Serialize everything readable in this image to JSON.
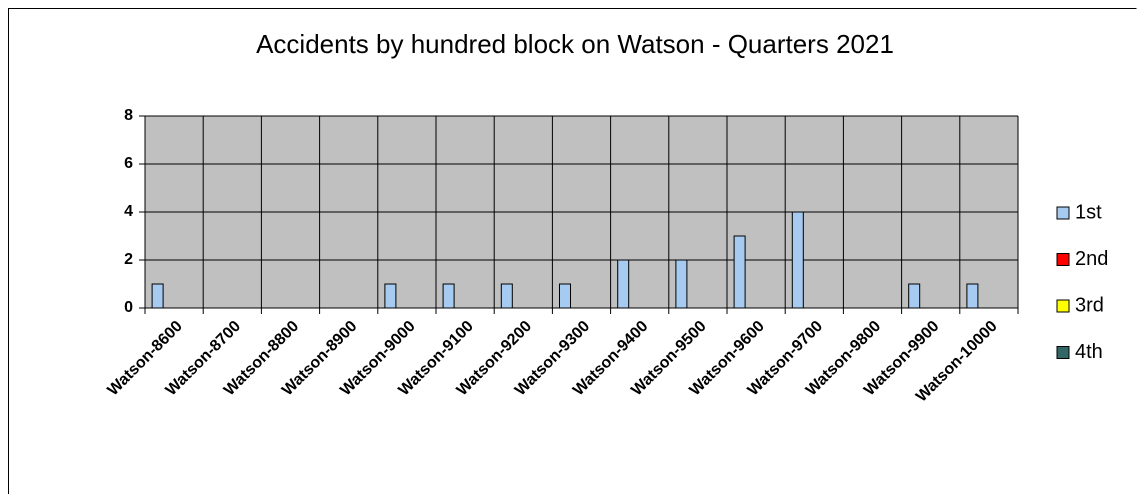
{
  "chart_data": {
    "type": "bar",
    "title": "Accidents by hundred block on Watson - Quarters 2021",
    "categories": [
      "Watson-8600",
      "Watson-8700",
      "Watson-8800",
      "Watson-8900",
      "Watson-9000",
      "Watson-9100",
      "Watson-9200",
      "Watson-9300",
      "Watson-9400",
      "Watson-9500",
      "Watson-9600",
      "Watson-9700",
      "Watson-9800",
      "Watson-9900",
      "Watson-10000"
    ],
    "series": [
      {
        "name": "1st",
        "color": "#a6caf0",
        "values": [
          1,
          0,
          0,
          0,
          1,
          1,
          1,
          1,
          2,
          2,
          3,
          4,
          0,
          1,
          1
        ]
      },
      {
        "name": "2nd",
        "color": "#ff0000",
        "values": [
          0,
          0,
          0,
          0,
          0,
          0,
          0,
          0,
          0,
          0,
          0,
          0,
          0,
          0,
          0
        ]
      },
      {
        "name": "3rd",
        "color": "#ffff00",
        "values": [
          0,
          0,
          0,
          0,
          0,
          0,
          0,
          0,
          0,
          0,
          0,
          0,
          0,
          0,
          0
        ]
      },
      {
        "name": "4th",
        "color": "#336666",
        "values": [
          0,
          0,
          0,
          0,
          0,
          0,
          0,
          0,
          0,
          0,
          0,
          0,
          0,
          0,
          0
        ]
      }
    ],
    "ylim": [
      0,
      8
    ],
    "yticks": [
      0,
      2,
      4,
      6,
      8
    ],
    "grid": true,
    "legend": "right"
  }
}
